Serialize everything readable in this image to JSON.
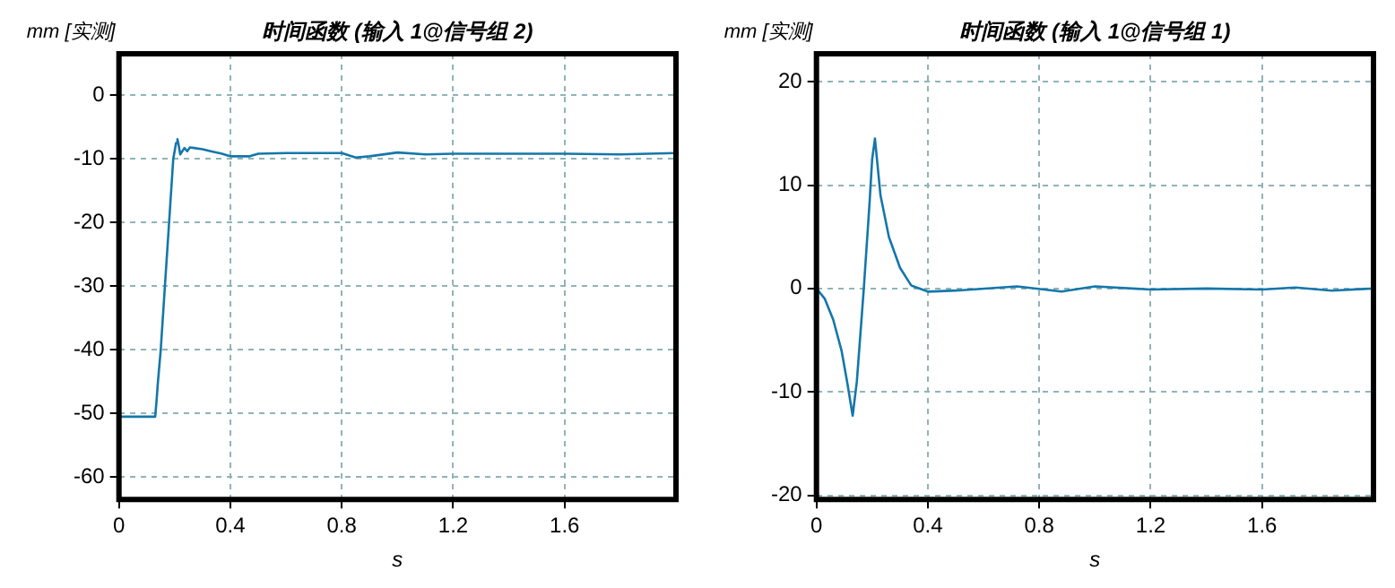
{
  "chart_data": [
    {
      "type": "line",
      "title": "时间函数 (输入 1@信号组 2)",
      "ylabel": "mm [实测]",
      "xlabel": "s",
      "grid": true,
      "xlim": [
        0,
        2
      ],
      "xticks": [
        0,
        0.4,
        0.8,
        1.2,
        1.6
      ],
      "ylim": [
        -63.5,
        6.5
      ],
      "yticks": [
        -60,
        -50,
        -40,
        -30,
        -20,
        -10,
        0
      ],
      "series": [
        {
          "color": "#1477aa",
          "x": [
            0,
            0.13,
            0.135,
            0.14,
            0.15,
            0.165,
            0.18,
            0.195,
            0.205,
            0.21,
            0.215,
            0.22,
            0.235,
            0.245,
            0.255,
            0.27,
            0.3,
            0.33,
            0.37,
            0.4,
            0.47,
            0.5,
            0.6,
            0.8,
            0.85,
            0.9,
            1.0,
            1.1,
            1.2,
            1.4,
            1.6,
            1.8,
            2.0
          ],
          "values": [
            -50.5,
            -50.5,
            -48,
            -45,
            -40,
            -30,
            -20,
            -10,
            -7.5,
            -6.9,
            -8,
            -9.3,
            -8.3,
            -8.8,
            -8.2,
            -8.3,
            -8.5,
            -8.8,
            -9.2,
            -9.6,
            -9.6,
            -9.2,
            -9.1,
            -9.1,
            -9.8,
            -9.6,
            -9.0,
            -9.3,
            -9.2,
            -9.2,
            -9.2,
            -9.3,
            -9.1
          ]
        }
      ]
    },
    {
      "type": "line",
      "title": "时间函数 (输入 1@信号组 1)",
      "ylabel": "mm [实测]",
      "xlabel": "s",
      "grid": true,
      "xlim": [
        0,
        2
      ],
      "xticks": [
        0,
        0.4,
        0.8,
        1.2,
        1.6
      ],
      "ylim": [
        -20.4,
        22.7
      ],
      "yticks": [
        -20,
        -10,
        0,
        10,
        20
      ],
      "series": [
        {
          "color": "#1477aa",
          "x": [
            0,
            0.03,
            0.06,
            0.09,
            0.11,
            0.13,
            0.145,
            0.17,
            0.19,
            0.2,
            0.21,
            0.23,
            0.26,
            0.3,
            0.34,
            0.4,
            0.5,
            0.72,
            0.88,
            1.0,
            1.2,
            1.4,
            1.6,
            1.72,
            1.85,
            2.0
          ],
          "values": [
            0,
            -1,
            -3,
            -6,
            -9,
            -12.3,
            -9,
            0,
            8,
            12.5,
            14.5,
            9,
            5,
            2,
            0.3,
            -0.3,
            -0.2,
            0.2,
            -0.3,
            0.2,
            -0.1,
            0,
            -0.1,
            0.1,
            -0.2,
            0
          ]
        }
      ]
    }
  ]
}
